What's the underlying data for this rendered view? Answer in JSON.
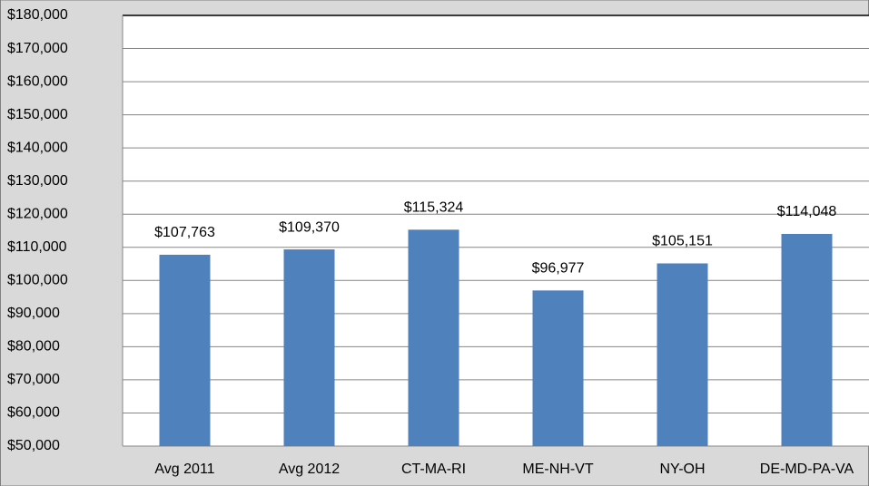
{
  "chart_data": {
    "type": "bar",
    "categories": [
      "Avg 2011",
      "Avg 2012",
      "CT-MA-RI",
      "ME-NH-VT",
      "NY-OH",
      "DE-MD-PA-VA"
    ],
    "values": [
      107763,
      109370,
      115324,
      96977,
      105151,
      114048
    ],
    "value_labels": [
      "$107,763",
      "$109,370",
      "$115,324",
      "$96,977",
      "$105,151",
      "$114,048"
    ],
    "color": "#4f81bd",
    "ylim": [
      50000,
      180000
    ],
    "yticks": [
      {
        "value": 50000,
        "label": "$50,000"
      },
      {
        "value": 60000,
        "label": "$60,000"
      },
      {
        "value": 70000,
        "label": "$70,000"
      },
      {
        "value": 80000,
        "label": "$80,000"
      },
      {
        "value": 90000,
        "label": "$90,000"
      },
      {
        "value": 100000,
        "label": "$100,000"
      },
      {
        "value": 110000,
        "label": "$110,000"
      },
      {
        "value": 120000,
        "label": "$120,000"
      },
      {
        "value": 130000,
        "label": "$130,000"
      },
      {
        "value": 140000,
        "label": "$140,000"
      },
      {
        "value": 150000,
        "label": "$150,000"
      },
      {
        "value": 160000,
        "label": "$160,000"
      },
      {
        "value": 170000,
        "label": "$170,000"
      },
      {
        "value": 180000,
        "label": "$180,000"
      }
    ],
    "grid": true
  }
}
